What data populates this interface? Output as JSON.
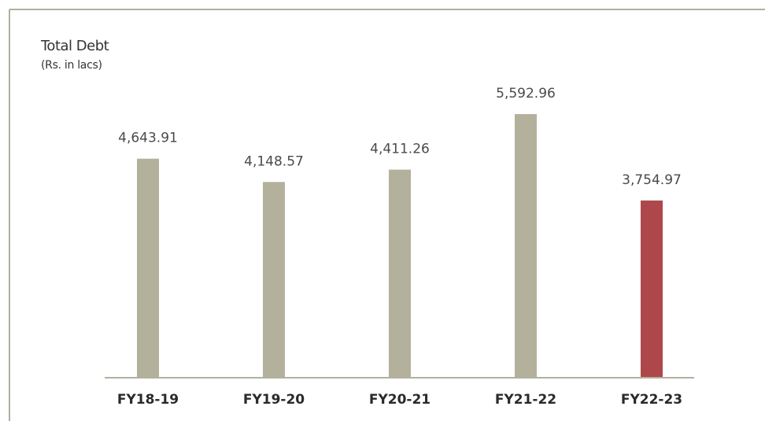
{
  "chart_data": {
    "type": "bar",
    "title": "Total Debt",
    "subtitle": "(Rs. in lacs)",
    "categories": [
      "FY18-19",
      "FY19-20",
      "FY20-21",
      "FY21-22",
      "FY22-23"
    ],
    "values": [
      4643.91,
      4148.57,
      4411.26,
      5592.96,
      3754.97
    ],
    "value_labels": [
      "4,643.91",
      "4,148.57",
      "4,411.26",
      "5,592.96",
      "3,754.97"
    ],
    "colors": [
      "#b3b09c",
      "#b3b09c",
      "#b3b09c",
      "#b3b09c",
      "#ad474b"
    ]
  }
}
